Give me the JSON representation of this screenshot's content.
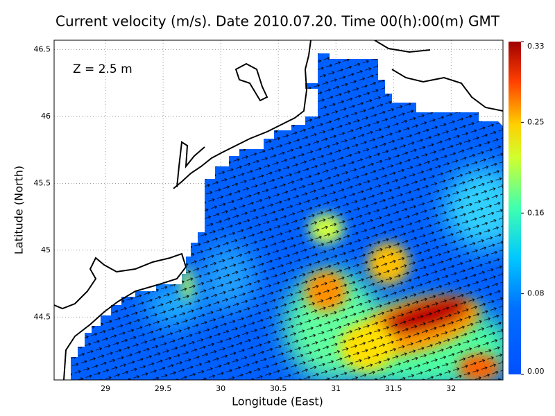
{
  "title": "Current velocity (m/s). Date 2010.07.20. Time 00(h):00(m) GMT",
  "annotation": "Z = 2.5 m",
  "x_label": "Longitude (East)",
  "y_label": "Latitude (North)",
  "xlim": [
    28.554,
    32.45
  ],
  "ylim": [
    44.03,
    46.57
  ],
  "xticks": [
    29,
    29.5,
    30,
    30.5,
    31,
    31.5,
    32
  ],
  "yticks": [
    44.5,
    45,
    45.5,
    46,
    46.5
  ],
  "colorbar": {
    "lim": [
      0,
      0.33
    ],
    "ticks": [
      {
        "value": 0,
        "label": "0.00"
      },
      0.08,
      0.16,
      0.25,
      0.33
    ]
  }
}
